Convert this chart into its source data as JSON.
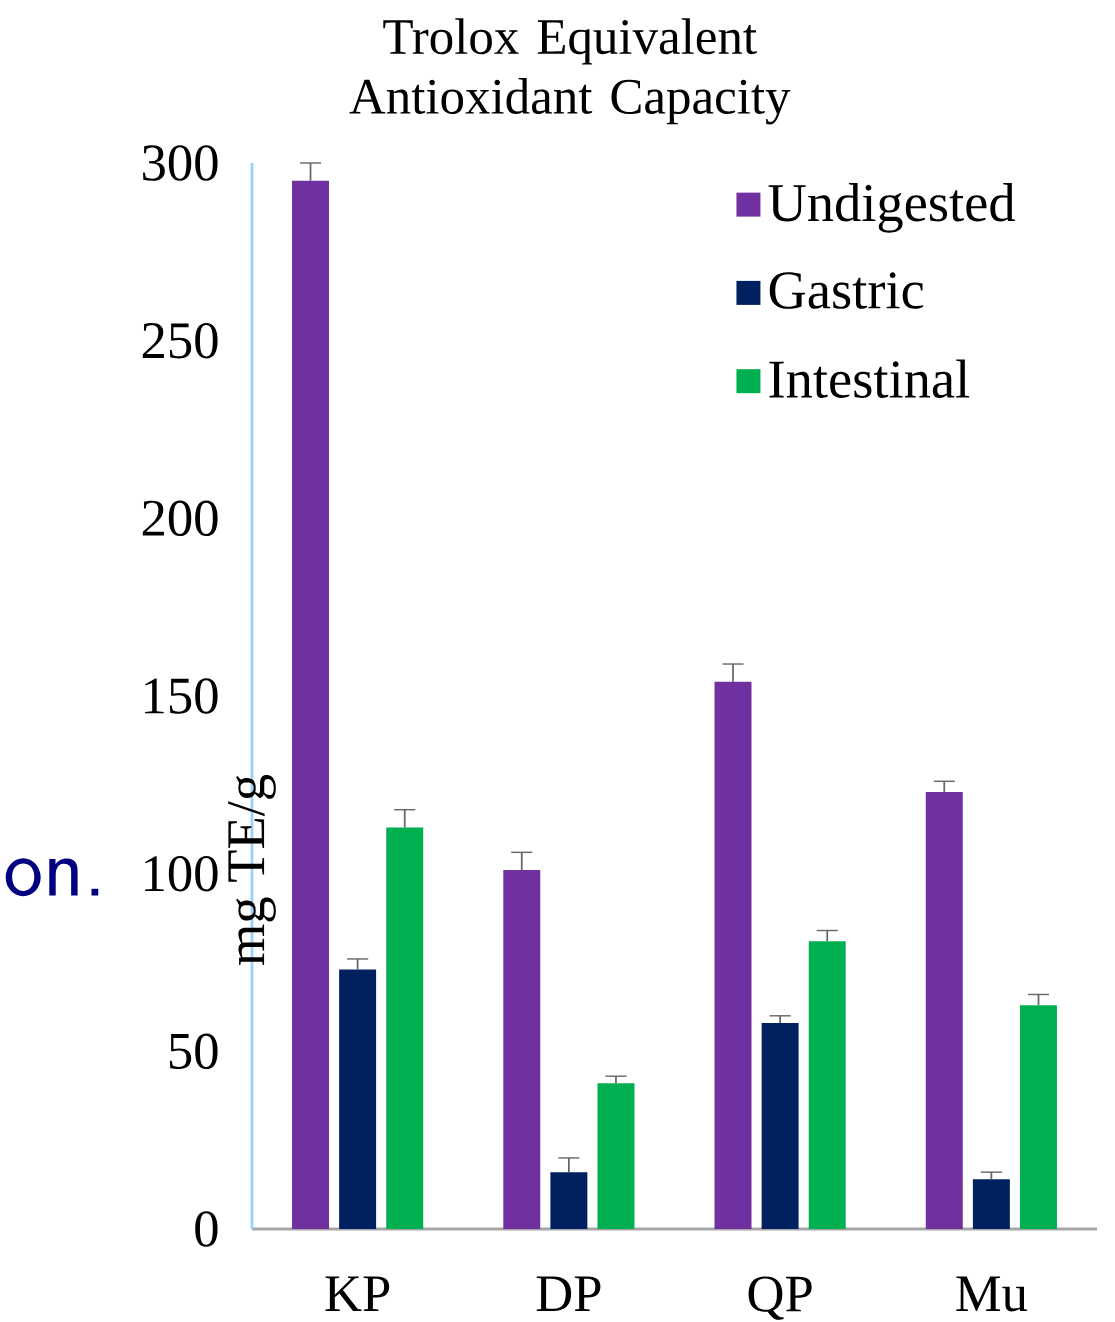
{
  "chart_data": {
    "type": "bar",
    "title": "Trolox Equivalent Antioxidant Capacity",
    "ylabel": "mg TE/g",
    "categories": [
      "KP",
      "DP",
      "QP",
      "Mu"
    ],
    "series": [
      {
        "name": "Undigested",
        "color": "#7030a0",
        "values": [
          295,
          101,
          154,
          123
        ],
        "errors": [
          5,
          5,
          5,
          3
        ]
      },
      {
        "name": "Gastric",
        "color": "#002060",
        "values": [
          73,
          16,
          58,
          14
        ],
        "errors": [
          3,
          4,
          2,
          2
        ]
      },
      {
        "name": "Intestinal",
        "color": "#00b050",
        "values": [
          113,
          41,
          81,
          63
        ],
        "errors": [
          5,
          2,
          3,
          3
        ]
      }
    ],
    "ylim": [
      0,
      300
    ],
    "yticks": [
      0,
      50,
      100,
      150,
      200,
      250,
      300
    ],
    "legend": "top right",
    "grid": false,
    "annotations": [
      "on."
    ]
  }
}
